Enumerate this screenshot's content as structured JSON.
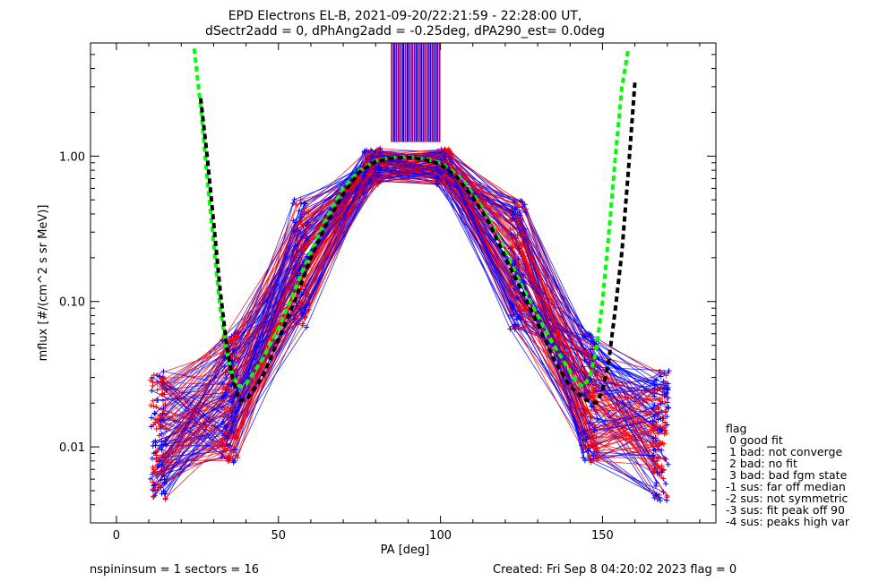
{
  "chart_data": {
    "type": "line",
    "title": "EPD Electrons EL-B, 2021-09-20/22:21:59 - 22:28:00 UT,",
    "subtitle": "dSectr2add = 0, dPhAng2add = -0.25deg, dPA290_est=   0.0deg",
    "xlabel": "PA [deg]",
    "ylabel": "mflux [#/(cm^2 s sr MeV)]",
    "xlim": [
      -8,
      185
    ],
    "ylim": [
      0.003,
      6.0
    ],
    "y_scale": "log",
    "grid": false,
    "x_ticks": [
      0,
      50,
      100,
      150
    ],
    "x_tick_labels": [
      "0",
      "50",
      "100",
      "150"
    ],
    "y_ticks": [
      0.01,
      0.1,
      1.0
    ],
    "y_tick_labels": [
      "0.01",
      "0.10",
      "1.00"
    ],
    "colors": {
      "red": "#ff0000",
      "blue": "#0000ff",
      "green": "#00ff00",
      "black": "#000000"
    },
    "series": [
      {
        "color": "#00ff00",
        "style": "dashed",
        "kind": "fit",
        "x": [
          24,
          26,
          28,
          30,
          32,
          34,
          36,
          38,
          40,
          45,
          50,
          55,
          60,
          65,
          70,
          75,
          80,
          85,
          90,
          95,
          100,
          105,
          110,
          115,
          120,
          125,
          130,
          135,
          140,
          142,
          144,
          146,
          148,
          150,
          152,
          154,
          156,
          158
        ],
        "y": [
          5.5,
          2.2,
          0.7,
          0.25,
          0.09,
          0.045,
          0.03,
          0.026,
          0.027,
          0.04,
          0.065,
          0.12,
          0.22,
          0.38,
          0.6,
          0.8,
          0.93,
          0.98,
          0.99,
          0.96,
          0.9,
          0.75,
          0.55,
          0.37,
          0.22,
          0.13,
          0.08,
          0.05,
          0.033,
          0.028,
          0.026,
          0.03,
          0.045,
          0.1,
          0.3,
          1.0,
          3.0,
          5.5
        ]
      },
      {
        "color": "#000000",
        "style": "dashed",
        "kind": "fit",
        "x": [
          26,
          28,
          30,
          32,
          34,
          36,
          38,
          40,
          45,
          50,
          55,
          60,
          65,
          70,
          75,
          80,
          85,
          90,
          95,
          100,
          105,
          110,
          115,
          120,
          125,
          130,
          135,
          140,
          145,
          148,
          150,
          152,
          154,
          156,
          158,
          160
        ],
        "y": [
          2.5,
          1.0,
          0.35,
          0.12,
          0.05,
          0.028,
          0.021,
          0.021,
          0.03,
          0.055,
          0.1,
          0.2,
          0.35,
          0.55,
          0.78,
          0.92,
          0.97,
          0.98,
          0.95,
          0.88,
          0.72,
          0.52,
          0.35,
          0.2,
          0.12,
          0.07,
          0.04,
          0.026,
          0.021,
          0.02,
          0.024,
          0.04,
          0.09,
          0.22,
          0.8,
          3.2
        ]
      }
    ],
    "pa_sectors": [
      13,
      35,
      57,
      79,
      101,
      124,
      146,
      168
    ],
    "legend": {
      "placement": "right",
      "title": "flag",
      "entries": [
        " 0 good fit",
        " 1 bad: not converge",
        " 2 bad: no fit",
        " 3 bad: bad fgm state",
        "-1 sus: far off median",
        "-2 sus: not symmetric",
        "-3 sus: fit peak off 90",
        "-4 sus: peaks high var"
      ]
    }
  },
  "footer": {
    "left": "nspininsum =  1  sectors = 16",
    "right": "Created: Fri Sep  8 04:20:02 2023   flag = 0"
  }
}
